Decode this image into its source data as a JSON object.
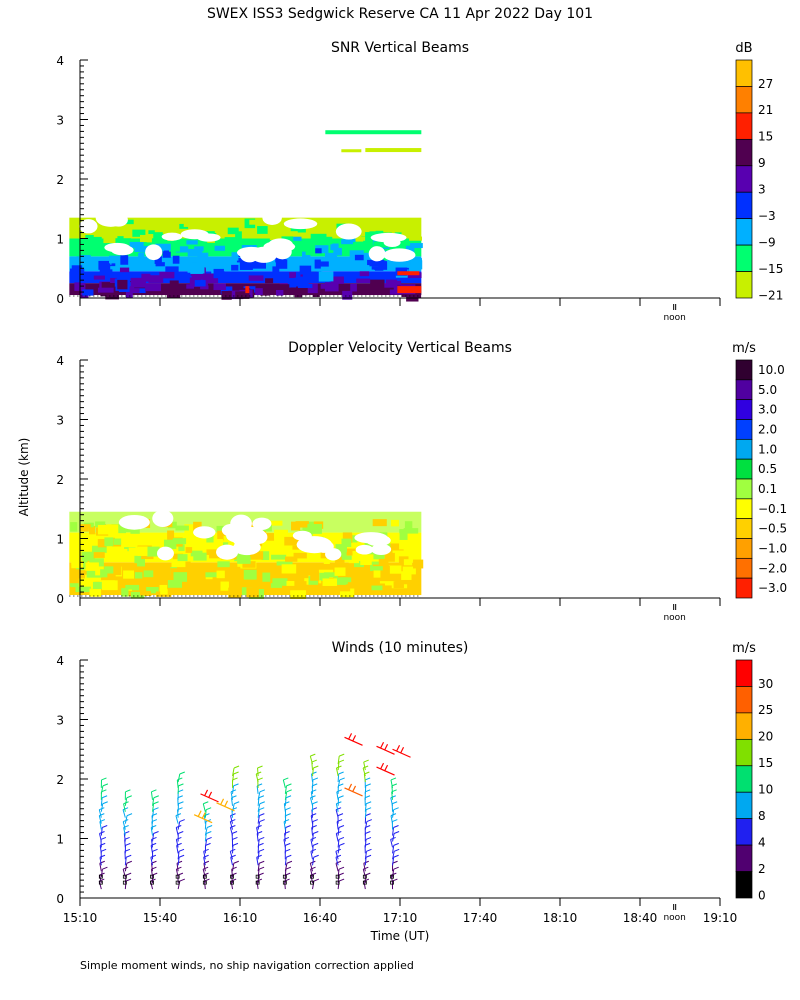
{
  "header": {
    "title": "SWEX ISS3 Sedgwick Reserve CA  11 Apr 2022 Day 101",
    "ylabel": "Altitude (km)",
    "xlabel": "Time (UT)",
    "footer": "Simple moment winds, no ship navigation correction applied",
    "noon": "noon"
  },
  "chart_data": [
    {
      "type": "heatmap",
      "title": "SNR Vertical Beams",
      "ylabel": "Altitude (km)",
      "ylim": [
        0,
        4
      ],
      "yticks": [
        "0",
        "1",
        "2",
        "3",
        "4"
      ],
      "colorbar": {
        "unit": "dB",
        "labels": [
          "27",
          "21",
          "15",
          "9",
          "3",
          "−3",
          "−9",
          "−15",
          "−21"
        ],
        "colors": [
          "#ffc000",
          "#ff8000",
          "#ff2000",
          "#500050",
          "#5800b0",
          "#0030ff",
          "#00b0ff",
          "#00ff70",
          "#c8f000"
        ]
      },
      "coverage_hours": [
        15.1,
        17.3
      ],
      "layers": [
        {
          "alt": [
            0.05,
            0.25
          ],
          "color": "#500050"
        },
        {
          "alt": [
            0.25,
            0.45
          ],
          "color": "#0030ff"
        },
        {
          "alt": [
            0.45,
            0.7
          ],
          "color": "#00b0ff"
        },
        {
          "alt": [
            0.7,
            1.0
          ],
          "color": "#00ff70"
        },
        {
          "alt": [
            1.0,
            1.35
          ],
          "color": "#c8f000"
        }
      ]
    },
    {
      "type": "heatmap",
      "title": "Doppler Velocity Vertical Beams",
      "ylabel": "Altitude (km)",
      "ylim": [
        0,
        4
      ],
      "yticks": [
        "0",
        "1",
        "2",
        "3",
        "4"
      ],
      "colorbar": {
        "unit": "m/s",
        "labels": [
          "10.0",
          "5.0",
          "3.0",
          "2.0",
          "1.0",
          "0.5",
          "0.1",
          "−0.1",
          "−0.5",
          "−1.0",
          "−2.0",
          "−3.0"
        ],
        "colors": [
          "#300030",
          "#5000a0",
          "#3000e0",
          "#0040ff",
          "#00a8f0",
          "#00e040",
          "#a0ff40",
          "#ffff00",
          "#ffd000",
          "#ffa000",
          "#ff7000",
          "#ff2000"
        ]
      },
      "coverage_hours": [
        15.1,
        17.3
      ],
      "layers": [
        {
          "alt": [
            0.05,
            0.6
          ],
          "color": "#ffd000"
        },
        {
          "alt": [
            0.6,
            1.1
          ],
          "color": "#ffff00"
        },
        {
          "alt": [
            1.1,
            1.45
          ],
          "color": "#c8ff60"
        }
      ]
    },
    {
      "type": "scatter",
      "title": "Winds (10 minutes)",
      "ylabel": "Altitude (km)",
      "xlabel": "Time (UT)",
      "ylim": [
        0,
        4
      ],
      "yticks": [
        "0",
        "1",
        "2",
        "3",
        "4"
      ],
      "xlim_hours": [
        15.1667,
        19.1667
      ],
      "xticks": [
        "15:10",
        "15:40",
        "16:10",
        "16:40",
        "17:10",
        "17:40",
        "18:10",
        "18:40",
        "19:10"
      ],
      "colorbar": {
        "unit": "m/s",
        "labels": [
          "30",
          "25",
          "20",
          "15",
          "10",
          "8",
          "4",
          "2",
          "0"
        ],
        "colors": [
          "#ff0000",
          "#ff6000",
          "#ffb000",
          "#80e000",
          "#00e070",
          "#00a8f0",
          "#2020f0",
          "#500070",
          "#000000"
        ]
      },
      "profile_times_hours": [
        15.3,
        15.45,
        15.62,
        15.78,
        15.95,
        16.12,
        16.28,
        16.45,
        16.62,
        16.78,
        16.95,
        17.12
      ],
      "profile_top_km": [
        1.9,
        1.7,
        1.7,
        2.0,
        1.5,
        2.1,
        2.1,
        1.9,
        2.3,
        2.3,
        2.2,
        1.9
      ]
    }
  ]
}
